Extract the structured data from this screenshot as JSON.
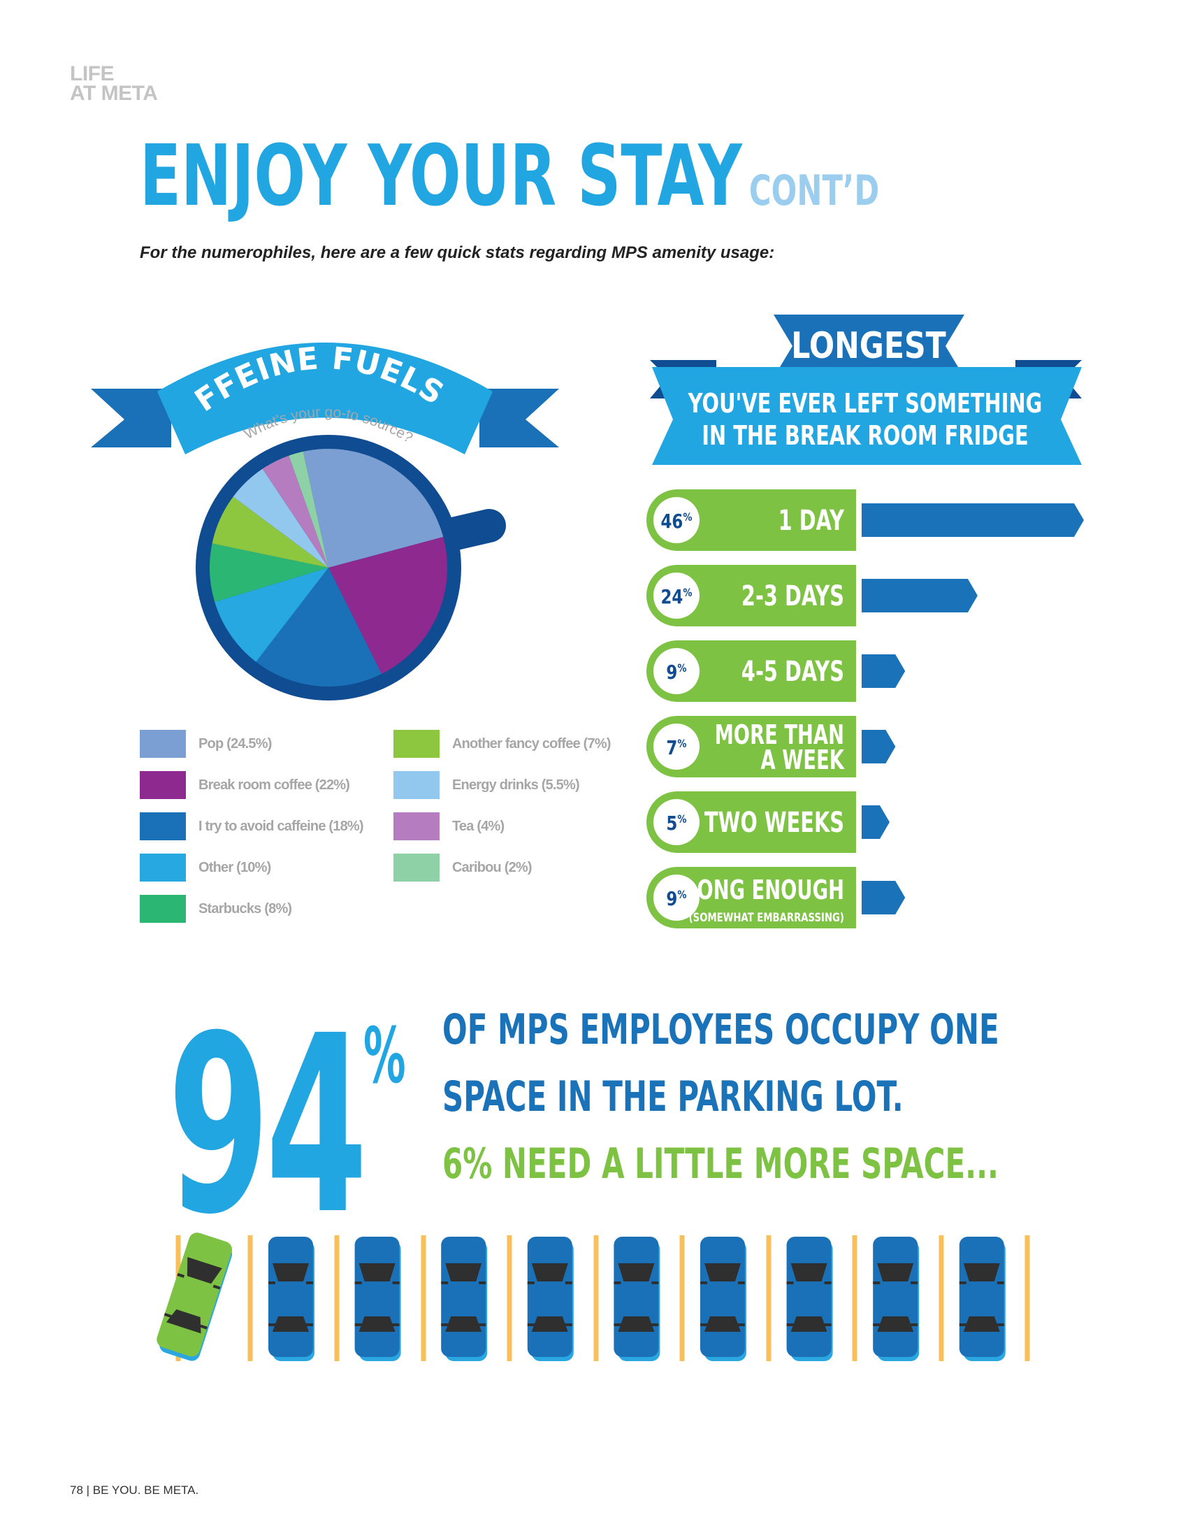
{
  "header": {
    "section_line1": "LIFE",
    "section_line2": "AT META",
    "title": "ENJOY YOUR STAY",
    "title_suffix": "CONT’D",
    "intro": "For the numerophiles, here are a few quick stats regarding MPS amenity usage:"
  },
  "caffeine": {
    "banner_title": "CAFFEINE FUELS US",
    "subtitle": "What's your go-to source?"
  },
  "fridge": {
    "banner_title": "LONGEST",
    "subtitle_line1": "YOU'VE EVER LEFT SOMETHING",
    "subtitle_line2": "IN THE BREAK ROOM FRIDGE"
  },
  "parking": {
    "big_number": "94",
    "percent_sign": "%",
    "line1": "OF MPS EMPLOYEES OCCUPY ONE",
    "line2": "SPACE IN THE PARKING LOT.",
    "line3": "6% NEED A LITTLE MORE SPACE..."
  },
  "footer": "78 |  BE YOU. BE META.",
  "colors": {
    "brand_blue": "#22a6e2",
    "dark_blue": "#1a72b8",
    "navy": "#0f4c91",
    "green": "#7dc242",
    "parking_line": "#f9bf5a"
  },
  "chart_data": [
    {
      "type": "pie",
      "title": "CAFFEINE FUELS US",
      "subtitle": "What's your go-to source?",
      "slices": [
        {
          "label": "Pop (24.5%)",
          "value": 24.5,
          "color": "#7b9fd2"
        },
        {
          "label": "Break room coffee (22%)",
          "value": 22,
          "color": "#8e2a8f"
        },
        {
          "label": "I try to avoid caffeine (18%)",
          "value": 18,
          "color": "#1b71b8"
        },
        {
          "label": "Other (10%)",
          "value": 10,
          "color": "#27a8e0"
        },
        {
          "label": "Starbucks (8%)",
          "value": 8,
          "color": "#2bb673"
        },
        {
          "label": "Another fancy coffee (7%)",
          "value": 7,
          "color": "#8dc63f"
        },
        {
          "label": "Energy drinks (5.5%)",
          "value": 5.5,
          "color": "#93c8ee"
        },
        {
          "label": "Tea (4%)",
          "value": 4,
          "color": "#b57cbf"
        },
        {
          "label": "Caribou (2%)",
          "value": 2,
          "color": "#8fd1a6"
        }
      ]
    },
    {
      "type": "bar",
      "title": "LONGEST",
      "subtitle": "YOU'VE EVER LEFT SOMETHING IN THE BREAK ROOM FRIDGE",
      "rows": [
        {
          "pct_num": "46",
          "pct_sign": "%",
          "value": 46,
          "label": "1 DAY",
          "label2": ""
        },
        {
          "pct_num": "24",
          "pct_sign": "%",
          "value": 24,
          "label": "2-3 DAYS",
          "label2": ""
        },
        {
          "pct_num": "9",
          "pct_sign": "%",
          "value": 9,
          "label": "4-5 DAYS",
          "label2": ""
        },
        {
          "pct_num": "7",
          "pct_sign": "%",
          "value": 7,
          "label": "MORE THAN",
          "label2": "A WEEK"
        },
        {
          "pct_num": "5",
          "pct_sign": "%",
          "value": 5,
          "label": "TWO WEEKS",
          "label2": ""
        },
        {
          "pct_num": "9",
          "pct_sign": "%",
          "value": 9,
          "label": "LONG ENOUGH",
          "label2": "(SOMEWHAT EMBARRASSING)"
        }
      ]
    }
  ]
}
